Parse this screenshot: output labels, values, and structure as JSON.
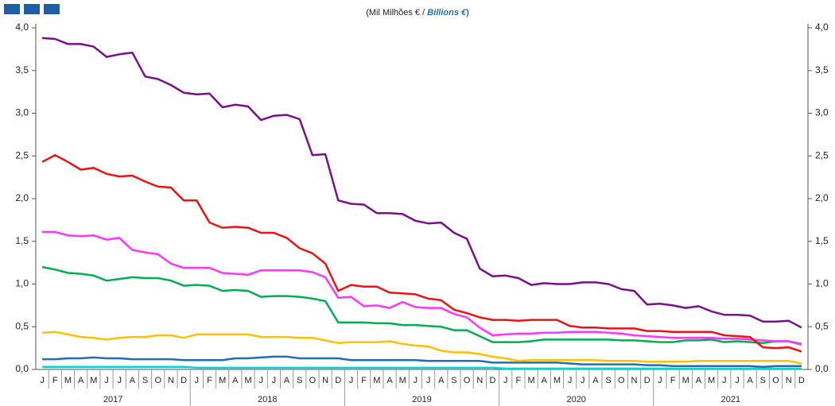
{
  "chart_data": {
    "type": "line",
    "subtitle": {
      "prefix": "(Mil Milhões € /",
      "emphasis": "Billions €",
      "suffix": ")"
    },
    "categories": [
      "J",
      "F",
      "M",
      "A",
      "M",
      "J",
      "J",
      "A",
      "S",
      "O",
      "N",
      "D",
      "J",
      "F",
      "M",
      "A",
      "M",
      "J",
      "J",
      "A",
      "S",
      "O",
      "N",
      "D",
      "J",
      "F",
      "M",
      "A",
      "M",
      "J",
      "J",
      "A",
      "S",
      "O",
      "N",
      "D",
      "J",
      "F",
      "M",
      "A",
      "M",
      "J",
      "J",
      "A",
      "S",
      "O",
      "N",
      "D",
      "J",
      "F",
      "M",
      "A",
      "M",
      "J",
      "J",
      "A",
      "S",
      "O",
      "N",
      "D"
    ],
    "years": [
      "2017",
      "2018",
      "2019",
      "2020",
      "2021"
    ],
    "ylim": [
      0,
      4
    ],
    "yticks": [
      {
        "value": 0,
        "label": "0,0"
      },
      {
        "value": 0.5,
        "label": "0,5"
      },
      {
        "value": 1,
        "label": "1,0"
      },
      {
        "value": 1.5,
        "label": "1,5"
      },
      {
        "value": 2,
        "label": "2,0"
      },
      {
        "value": 2.5,
        "label": "2,5"
      },
      {
        "value": 3,
        "label": "3,0"
      },
      {
        "value": 3.5,
        "label": "3,5"
      },
      {
        "value": 4,
        "label": "4,0"
      }
    ],
    "grid": false,
    "series": [
      {
        "color": "#00d8d8",
        "values": [
          0.03,
          0.03,
          0.03,
          0.03,
          0.03,
          0.03,
          0.03,
          0.03,
          0.03,
          0.03,
          0.03,
          0.03,
          0.02,
          0.02,
          0.02,
          0.02,
          0.02,
          0.02,
          0.02,
          0.02,
          0.02,
          0.02,
          0.02,
          0.02,
          0.02,
          0.02,
          0.02,
          0.02,
          0.02,
          0.02,
          0.02,
          0.02,
          0.02,
          0.02,
          0.02,
          0.02,
          0.01,
          0.01,
          0.01,
          0.01,
          0.01,
          0.01,
          0.01,
          0.01,
          0.01,
          0.01,
          0.01,
          0.01,
          0.01,
          0.01,
          0.01,
          0.01,
          0.01,
          0.01,
          0.01,
          0.01,
          0.01,
          0.01,
          0.01,
          0.01
        ]
      },
      {
        "color": "#1f6fb5",
        "values": [
          0.12,
          0.12,
          0.13,
          0.13,
          0.14,
          0.13,
          0.13,
          0.12,
          0.12,
          0.12,
          0.12,
          0.11,
          0.11,
          0.11,
          0.11,
          0.13,
          0.13,
          0.14,
          0.15,
          0.15,
          0.13,
          0.13,
          0.13,
          0.13,
          0.11,
          0.11,
          0.11,
          0.11,
          0.11,
          0.11,
          0.1,
          0.1,
          0.1,
          0.1,
          0.1,
          0.08,
          0.08,
          0.08,
          0.08,
          0.08,
          0.08,
          0.07,
          0.06,
          0.06,
          0.06,
          0.06,
          0.06,
          0.05,
          0.05,
          0.04,
          0.04,
          0.04,
          0.04,
          0.04,
          0.04,
          0.04,
          0.03,
          0.04,
          0.04,
          0.04
        ]
      },
      {
        "color": "#ffc000",
        "values": [
          0.43,
          0.44,
          0.41,
          0.38,
          0.37,
          0.35,
          0.37,
          0.38,
          0.38,
          0.4,
          0.4,
          0.37,
          0.41,
          0.41,
          0.41,
          0.41,
          0.41,
          0.38,
          0.38,
          0.38,
          0.37,
          0.37,
          0.34,
          0.31,
          0.32,
          0.32,
          0.32,
          0.33,
          0.3,
          0.28,
          0.27,
          0.22,
          0.2,
          0.2,
          0.18,
          0.15,
          0.13,
          0.1,
          0.11,
          0.11,
          0.11,
          0.11,
          0.11,
          0.11,
          0.1,
          0.1,
          0.1,
          0.09,
          0.09,
          0.09,
          0.09,
          0.1,
          0.1,
          0.1,
          0.1,
          0.1,
          0.1,
          0.1,
          0.1,
          0.07
        ]
      },
      {
        "color": "#00b050",
        "values": [
          1.2,
          1.17,
          1.13,
          1.12,
          1.1,
          1.04,
          1.06,
          1.08,
          1.07,
          1.07,
          1.04,
          0.98,
          0.99,
          0.98,
          0.92,
          0.93,
          0.92,
          0.85,
          0.86,
          0.86,
          0.85,
          0.83,
          0.8,
          0.55,
          0.55,
          0.55,
          0.54,
          0.54,
          0.52,
          0.52,
          0.51,
          0.5,
          0.46,
          0.46,
          0.39,
          0.32,
          0.32,
          0.32,
          0.33,
          0.35,
          0.35,
          0.35,
          0.35,
          0.35,
          0.35,
          0.34,
          0.34,
          0.33,
          0.32,
          0.32,
          0.34,
          0.34,
          0.35,
          0.32,
          0.33,
          0.32,
          0.31,
          0.33,
          0.33,
          0.3
        ]
      },
      {
        "color": "#ff33ff",
        "values": [
          1.61,
          1.61,
          1.57,
          1.56,
          1.57,
          1.52,
          1.54,
          1.4,
          1.37,
          1.35,
          1.24,
          1.19,
          1.19,
          1.19,
          1.13,
          1.12,
          1.11,
          1.16,
          1.16,
          1.16,
          1.16,
          1.14,
          1.08,
          0.84,
          0.85,
          0.74,
          0.75,
          0.72,
          0.79,
          0.73,
          0.72,
          0.72,
          0.65,
          0.61,
          0.49,
          0.4,
          0.41,
          0.42,
          0.42,
          0.43,
          0.43,
          0.44,
          0.44,
          0.44,
          0.43,
          0.42,
          0.4,
          0.39,
          0.38,
          0.37,
          0.37,
          0.37,
          0.37,
          0.36,
          0.36,
          0.35,
          0.34,
          0.33,
          0.33,
          0.29
        ]
      },
      {
        "color": "#ee1111",
        "values": [
          2.43,
          2.51,
          2.43,
          2.34,
          2.36,
          2.29,
          2.26,
          2.27,
          2.2,
          2.14,
          2.13,
          1.98,
          1.98,
          1.72,
          1.66,
          1.67,
          1.66,
          1.6,
          1.6,
          1.54,
          1.42,
          1.36,
          1.24,
          0.92,
          0.99,
          0.97,
          0.97,
          0.9,
          0.89,
          0.88,
          0.83,
          0.81,
          0.7,
          0.66,
          0.61,
          0.58,
          0.58,
          0.57,
          0.58,
          0.58,
          0.58,
          0.51,
          0.49,
          0.49,
          0.48,
          0.48,
          0.48,
          0.45,
          0.45,
          0.44,
          0.44,
          0.44,
          0.44,
          0.4,
          0.39,
          0.38,
          0.26,
          0.25,
          0.26,
          0.21
        ]
      },
      {
        "color": "#7b0f8a",
        "values": [
          3.88,
          3.87,
          3.81,
          3.81,
          3.78,
          3.66,
          3.69,
          3.71,
          3.43,
          3.4,
          3.33,
          3.24,
          3.22,
          3.23,
          3.07,
          3.1,
          3.08,
          2.92,
          2.97,
          2.98,
          2.93,
          2.51,
          2.52,
          1.98,
          1.94,
          1.93,
          1.83,
          1.83,
          1.82,
          1.74,
          1.71,
          1.72,
          1.6,
          1.53,
          1.18,
          1.09,
          1.1,
          1.07,
          0.99,
          1.01,
          1.0,
          1.0,
          1.02,
          1.02,
          1.0,
          0.94,
          0.92,
          0.76,
          0.77,
          0.75,
          0.72,
          0.74,
          0.68,
          0.64,
          0.64,
          0.63,
          0.56,
          0.56,
          0.57,
          0.49
        ]
      }
    ]
  }
}
